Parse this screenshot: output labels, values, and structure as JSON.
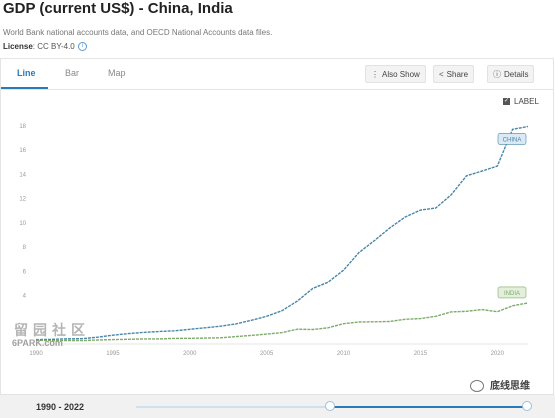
{
  "page": {
    "title": "GDP (current US$) - China, India",
    "source": "World Bank national accounts data, and OECD National Accounts data files.",
    "license_label": "License",
    "license_value": ": CC BY-4.0"
  },
  "tabs": [
    {
      "label": "Line"
    },
    {
      "label": "Bar"
    },
    {
      "label": "Map"
    }
  ],
  "toolbar": {
    "also_show": "Also Show",
    "share": "Share",
    "details": "Details"
  },
  "label_toggle": {
    "label": "LABEL",
    "checked": true
  },
  "range": {
    "label": "1990 - 2022"
  },
  "watermarks": {
    "left_chars": "留园社区",
    "left_url": "6PARK.com",
    "right": "底线思维"
  },
  "colors": {
    "china": "#4a86a8",
    "india": "#7cab6a",
    "accent": "#2a7ab9"
  },
  "chart_data": {
    "type": "line",
    "title": "GDP (current US$) - China, India",
    "xlabel": "",
    "ylabel": "",
    "xlim": [
      1990,
      2022
    ],
    "ylim": [
      0,
      18
    ],
    "x_ticks": [
      1990,
      1995,
      2000,
      2005,
      2010,
      2015,
      2020
    ],
    "y_ticks": [
      4,
      6,
      8,
      10,
      12,
      14,
      16,
      18
    ],
    "grid": false,
    "x": [
      1990,
      1991,
      1992,
      1993,
      1994,
      1995,
      1996,
      1997,
      1998,
      1999,
      2000,
      2001,
      2002,
      2003,
      2004,
      2005,
      2006,
      2007,
      2008,
      2009,
      2010,
      2011,
      2012,
      2013,
      2014,
      2015,
      2016,
      2017,
      2018,
      2019,
      2020,
      2021,
      2022
    ],
    "series": [
      {
        "name": "CHINA",
        "values": [
          0.36,
          0.38,
          0.43,
          0.44,
          0.56,
          0.73,
          0.86,
          0.96,
          1.03,
          1.09,
          1.21,
          1.34,
          1.47,
          1.66,
          1.96,
          2.29,
          2.75,
          3.55,
          4.59,
          5.1,
          6.09,
          7.55,
          8.53,
          9.57,
          10.48,
          11.06,
          11.23,
          12.31,
          13.89,
          14.28,
          14.69,
          17.73,
          17.96
        ]
      },
      {
        "name": "INDIA",
        "values": [
          0.32,
          0.27,
          0.29,
          0.28,
          0.33,
          0.36,
          0.39,
          0.42,
          0.42,
          0.46,
          0.47,
          0.49,
          0.51,
          0.61,
          0.71,
          0.82,
          0.94,
          1.22,
          1.2,
          1.34,
          1.68,
          1.82,
          1.83,
          1.86,
          2.04,
          2.1,
          2.29,
          2.65,
          2.7,
          2.84,
          2.67,
          3.15,
          3.39
        ]
      }
    ]
  }
}
